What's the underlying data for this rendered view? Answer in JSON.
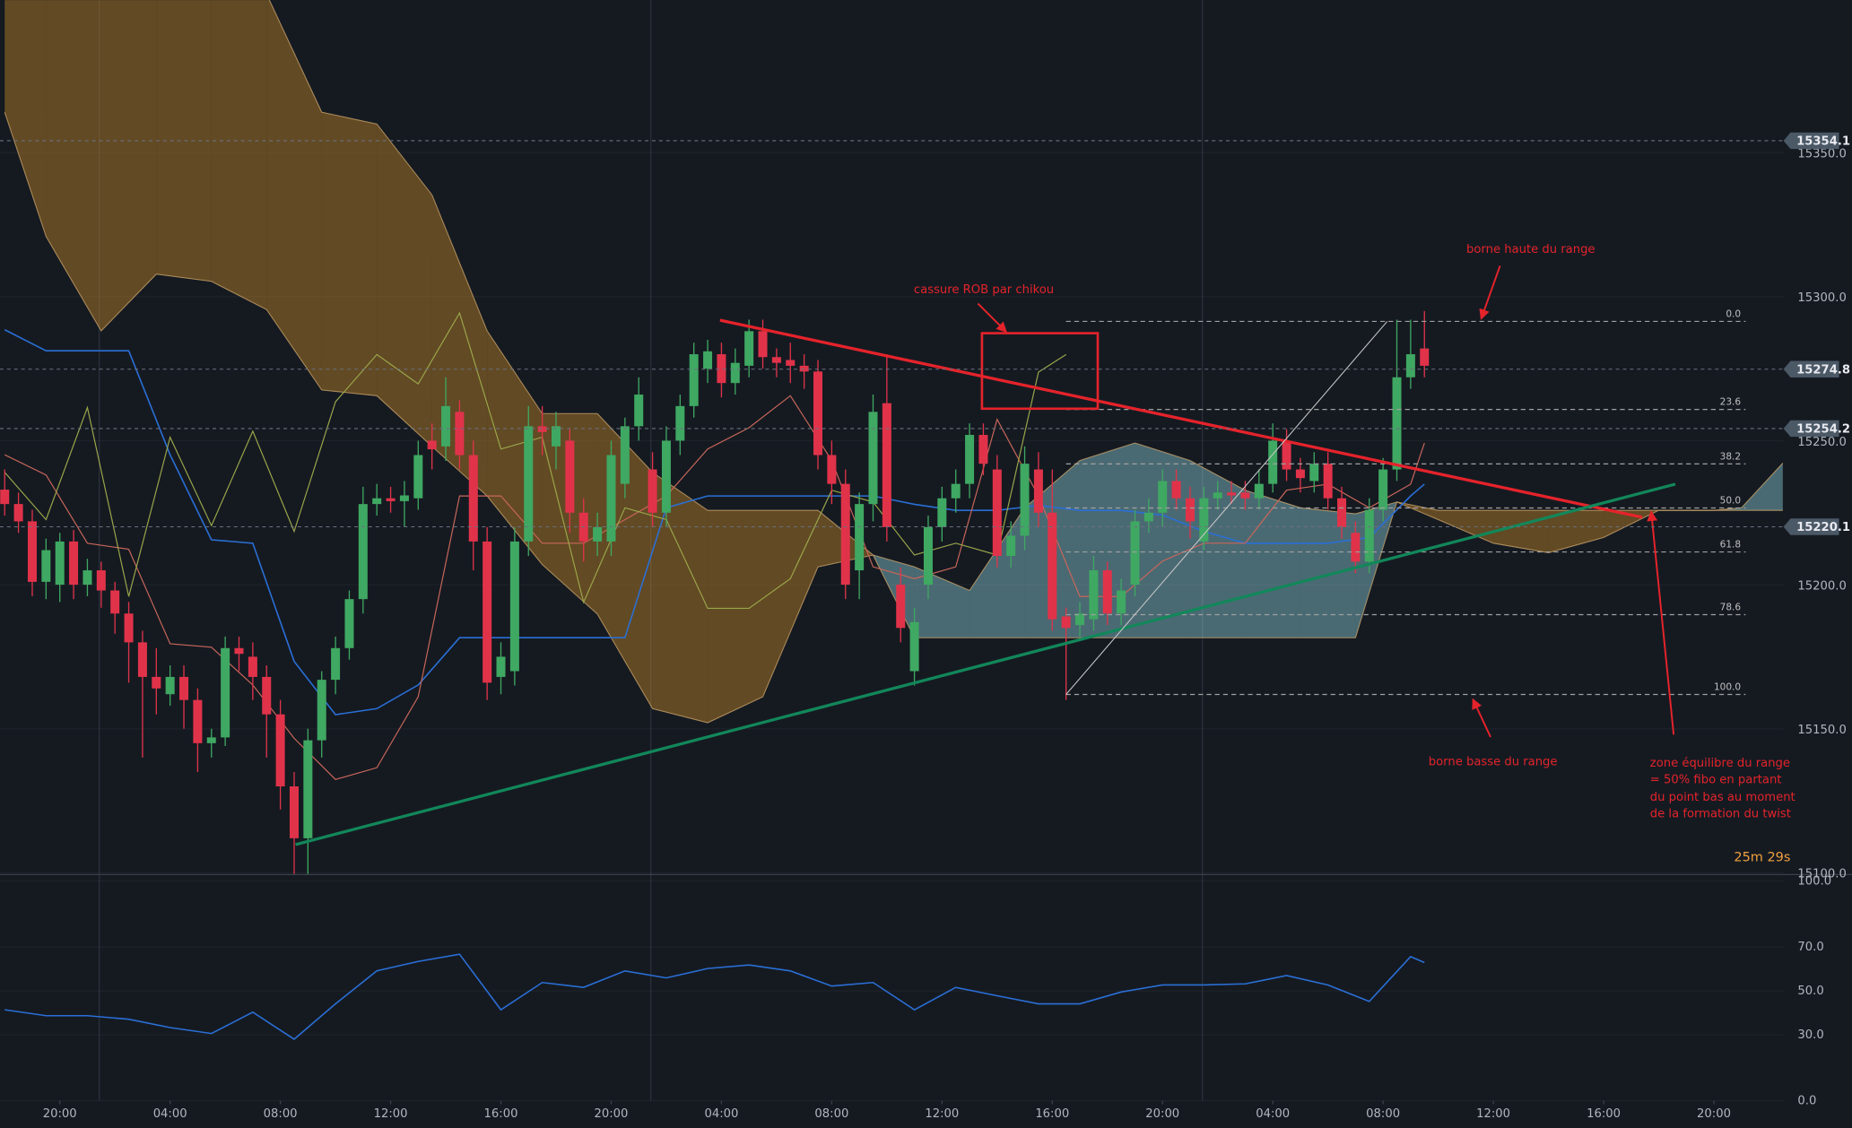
{
  "chart_data": {
    "type": "candlestick",
    "xlim": [
      -0.34,
      129.05
    ],
    "ylim": [
      15099.6,
      15402.9
    ],
    "yticks": [
      {
        "value": 15100,
        "label": "15100.0"
      },
      {
        "value": 15150,
        "label": "15150.0"
      },
      {
        "value": 15200,
        "label": "15200.0"
      },
      {
        "value": 15250,
        "label": "15250.0"
      },
      {
        "value": 15300,
        "label": "15300.0"
      },
      {
        "value": 15350,
        "label": "15350.0"
      }
    ],
    "xticks": [
      {
        "value": 4,
        "label": "20:00"
      },
      {
        "value": 12,
        "label": "04:00"
      },
      {
        "value": 20,
        "label": "08:00"
      },
      {
        "value": 28,
        "label": "12:00"
      },
      {
        "value": 36,
        "label": "16:00"
      },
      {
        "value": 44,
        "label": "20:00"
      },
      {
        "value": 52,
        "label": "04:00"
      },
      {
        "value": 60,
        "label": "08:00"
      },
      {
        "value": 68,
        "label": "12:00"
      },
      {
        "value": 76,
        "label": "16:00"
      },
      {
        "value": 84,
        "label": "20:00"
      },
      {
        "value": 92,
        "label": "04:00"
      },
      {
        "value": 100,
        "label": "08:00"
      },
      {
        "value": 108,
        "label": "12:00"
      },
      {
        "value": 116,
        "label": "16:00"
      },
      {
        "value": 124,
        "label": "20:00"
      }
    ],
    "up_color": "#3fa862",
    "down_color": "#e0334a",
    "ohlc": [
      [
        15233,
        15240,
        15224,
        15228
      ],
      [
        15228,
        15232,
        15218,
        15222
      ],
      [
        15222,
        15226,
        15196,
        15201
      ],
      [
        15201,
        15216,
        15195,
        15212
      ],
      [
        15200,
        15218,
        15194,
        15215
      ],
      [
        15215,
        15219,
        15195,
        15200
      ],
      [
        15200,
        15209,
        15196,
        15205
      ],
      [
        15205,
        15208,
        15192,
        15198
      ],
      [
        15198,
        15201,
        15183,
        15190
      ],
      [
        15190,
        15194,
        15166,
        15180
      ],
      [
        15180,
        15184,
        15140,
        15168
      ],
      [
        15168,
        15178,
        15155,
        15164
      ],
      [
        15162,
        15172,
        15158,
        15168
      ],
      [
        15168,
        15172,
        15150,
        15160
      ],
      [
        15160,
        15164,
        15135,
        15145
      ],
      [
        15145,
        15150,
        15140,
        15147
      ],
      [
        15147,
        15182,
        15144,
        15178
      ],
      [
        15178,
        15182,
        15170,
        15176
      ],
      [
        15175,
        15180,
        15160,
        15168
      ],
      [
        15168,
        15172,
        15140,
        15155
      ],
      [
        15155,
        15160,
        15122,
        15130
      ],
      [
        15130,
        15135,
        15098,
        15112
      ],
      [
        15112,
        15150,
        15098,
        15146
      ],
      [
        15146,
        15170,
        15140,
        15167
      ],
      [
        15167,
        15182,
        15162,
        15178
      ],
      [
        15178,
        15198,
        15174,
        15195
      ],
      [
        15195,
        15234,
        15190,
        15228
      ],
      [
        15228,
        15235,
        15224,
        15230
      ],
      [
        15230,
        15234,
        15225,
        15229
      ],
      [
        15229,
        15236,
        15220,
        15231
      ],
      [
        15230,
        15250,
        15226,
        15245
      ],
      [
        15250,
        15256,
        15240,
        15247
      ],
      [
        15248,
        15272,
        15243,
        15262
      ],
      [
        15260,
        15264,
        15240,
        15245
      ],
      [
        15245,
        15250,
        15205,
        15215
      ],
      [
        15215,
        15220,
        15160,
        15166
      ],
      [
        15168,
        15180,
        15162,
        15175
      ],
      [
        15170,
        15220,
        15165,
        15215
      ],
      [
        15215,
        15262,
        15210,
        15255
      ],
      [
        15255,
        15262,
        15245,
        15253
      ],
      [
        15248,
        15260,
        15240,
        15255
      ],
      [
        15250,
        15254,
        15218,
        15225
      ],
      [
        15225,
        15230,
        15208,
        15215
      ],
      [
        15215,
        15225,
        15210,
        15220
      ],
      [
        15215,
        15250,
        15210,
        15245
      ],
      [
        15235,
        15258,
        15230,
        15255
      ],
      [
        15255,
        15272,
        15250,
        15266
      ],
      [
        15240,
        15246,
        15220,
        15225
      ],
      [
        15225,
        15255,
        15220,
        15250
      ],
      [
        15250,
        15266,
        15245,
        15262
      ],
      [
        15262,
        15284,
        15258,
        15280
      ],
      [
        15275,
        15285,
        15270,
        15281
      ],
      [
        15280,
        15284,
        15265,
        15270
      ],
      [
        15270,
        15282,
        15266,
        15277
      ],
      [
        15276,
        15292,
        15272,
        15288
      ],
      [
        15288,
        15292,
        15275,
        15279
      ],
      [
        15279,
        15282,
        15272,
        15277
      ],
      [
        15278,
        15284,
        15270,
        15276
      ],
      [
        15276,
        15280,
        15268,
        15274
      ],
      [
        15274,
        15278,
        15240,
        15245
      ],
      [
        15245,
        15250,
        15228,
        15235
      ],
      [
        15235,
        15240,
        15195,
        15200
      ],
      [
        15205,
        15232,
        15195,
        15228
      ],
      [
        15228,
        15266,
        15222,
        15260
      ],
      [
        15263,
        15280,
        15215,
        15220
      ],
      [
        15200,
        15206,
        15180,
        15185
      ],
      [
        15170,
        15192,
        15165,
        15187
      ],
      [
        15200,
        15224,
        15195,
        15220
      ],
      [
        15220,
        15234,
        15215,
        15230
      ],
      [
        15230,
        15240,
        15225,
        15235
      ],
      [
        15235,
        15256,
        15230,
        15252
      ],
      [
        15252,
        15256,
        15238,
        15242
      ],
      [
        15240,
        15245,
        15206,
        15210
      ],
      [
        15210,
        15222,
        15206,
        15217
      ],
      [
        15217,
        15248,
        15212,
        15242
      ],
      [
        15240,
        15246,
        15220,
        15225
      ],
      [
        15225,
        15240,
        15184,
        15188
      ],
      [
        15189,
        15192,
        15160,
        15185
      ],
      [
        15186,
        15194,
        15182,
        15190
      ],
      [
        15188,
        15210,
        15184,
        15205
      ],
      [
        15205,
        15208,
        15186,
        15190
      ],
      [
        15190,
        15202,
        15186,
        15198
      ],
      [
        15200,
        15226,
        15196,
        15222
      ],
      [
        15222,
        15230,
        15218,
        15225
      ],
      [
        15225,
        15240,
        15220,
        15236
      ],
      [
        15236,
        15240,
        15226,
        15230
      ],
      [
        15230,
        15234,
        15216,
        15222
      ],
      [
        15215,
        15234,
        15212,
        15230
      ],
      [
        15230,
        15236,
        15226,
        15232
      ],
      [
        15232,
        15236,
        15228,
        15231
      ],
      [
        15232,
        15236,
        15226,
        15230
      ],
      [
        15230,
        15240,
        15226,
        15235
      ],
      [
        15235,
        15256,
        15232,
        15250
      ],
      [
        15250,
        15254,
        15236,
        15240
      ],
      [
        15240,
        15244,
        15232,
        15237
      ],
      [
        15236,
        15246,
        15232,
        15242
      ],
      [
        15242,
        15246,
        15226,
        15230
      ],
      [
        15230,
        15234,
        15216,
        15220
      ],
      [
        15218,
        15222,
        15204,
        15208
      ],
      [
        15208,
        15230,
        15204,
        15226
      ],
      [
        15226,
        15244,
        15222,
        15240
      ],
      [
        15240,
        15292,
        15236,
        15272
      ],
      [
        15272,
        15292,
        15268,
        15280
      ],
      [
        15282,
        15295,
        15272,
        15276
      ]
    ],
    "cloud": {
      "up_fill": "rgba(140,205,215,0.45)",
      "down_fill": "rgba(205,140,40,0.42)",
      "edge_color": "#c9a36a",
      "x": [
        0,
        3,
        7,
        11,
        15,
        19,
        23,
        27,
        31,
        35,
        39,
        43,
        47,
        51,
        55,
        59,
        63,
        66,
        70,
        74,
        78,
        82,
        86,
        90,
        94,
        98,
        101,
        104,
        108,
        112,
        116,
        120,
        124,
        126,
        129
      ],
      "span_a": [
        15364.0,
        15320.9,
        15288.1,
        15307.8,
        15305.3,
        15295.5,
        15267.6,
        15265.6,
        15248.0,
        15230.8,
        15207.0,
        15189.8,
        15157.0,
        15152.1,
        15161.1,
        15206.2,
        15210.3,
        15206.2,
        15198.0,
        15226.7,
        15243.1,
        15249.2,
        15243.1,
        15232.8,
        15226.7,
        15224.6,
        15228.7,
        15222.6,
        15214.4,
        15211.1,
        15216.4,
        15225.8,
        15225.8,
        15226.7,
        15242.2
      ],
      "span_b": [
        15405,
        15405,
        15405,
        15405,
        15405,
        15405,
        15364.0,
        15359.9,
        15335.3,
        15288.1,
        15259.4,
        15259.4,
        15239.0,
        15225.8,
        15225.8,
        15225.8,
        15210.3,
        15181.6,
        15181.6,
        15181.6,
        15181.6,
        15181.6,
        15181.6,
        15181.6,
        15181.6,
        15181.6,
        15228.7,
        15225.8,
        15225.8,
        15225.8,
        15225.8,
        15225.8,
        15225.8,
        15225.8,
        15225.8
      ]
    },
    "lines": [
      {
        "color": "#2a6fd6",
        "width": 1.2,
        "x": [
          0,
          3,
          6,
          9,
          12,
          15,
          18,
          21,
          24,
          27,
          30,
          33,
          36,
          39,
          42,
          45,
          48,
          51,
          54,
          57,
          60,
          63,
          66,
          69,
          72,
          75,
          78,
          81,
          84,
          87,
          90,
          93,
          96,
          99,
          102,
          103
        ],
        "values": [
          15288.5,
          15281.2,
          15281.2,
          15281.2,
          15245.1,
          15215.6,
          15214.4,
          15173.4,
          15154.9,
          15157.0,
          15165.2,
          15181.6,
          15181.6,
          15181.6,
          15181.6,
          15181.6,
          15226.7,
          15230.8,
          15230.8,
          15230.8,
          15230.8,
          15230.8,
          15227.9,
          15225.8,
          15225.8,
          15227.5,
          15225.8,
          15225.8,
          15224.2,
          15218.5,
          15214.4,
          15214.4,
          15214.4,
          15216.4,
          15230.8,
          15234.9
        ]
      },
      {
        "color": "#c9665a",
        "width": 0.9,
        "x": [
          0,
          3,
          6,
          9,
          12,
          15,
          18,
          21,
          24,
          27,
          30,
          33,
          36,
          39,
          42,
          45,
          48,
          51,
          54,
          57,
          60,
          63,
          66,
          69,
          72,
          75,
          78,
          81,
          84,
          87,
          90,
          93,
          96,
          99,
          102,
          103
        ],
        "values": [
          15245.1,
          15238.1,
          15214.4,
          15212.3,
          15179.5,
          15178.3,
          15165.2,
          15146.7,
          15132.4,
          15136.5,
          15161.1,
          15230.8,
          15230.8,
          15214.4,
          15214.4,
          15222.6,
          15230.8,
          15247.1,
          15254.5,
          15265.6,
          15243.1,
          15206.2,
          15202.1,
          15206.2,
          15257.4,
          15230.8,
          15195.9,
          15195.9,
          15208.2,
          15214.4,
          15214.4,
          15232.8,
          15234.9,
          15226.7,
          15234.9,
          15249.2
        ]
      },
      {
        "color": "#9aa64a",
        "width": 0.9,
        "x": [
          0,
          3,
          6,
          9,
          12,
          15,
          18,
          21,
          24,
          27,
          30,
          33,
          36,
          39,
          42,
          45,
          48,
          51,
          54,
          57,
          60,
          63,
          66,
          69,
          72,
          75,
          77
        ],
        "values": [
          15239.0,
          15222.6,
          15261.5,
          15195.9,
          15251.2,
          15220.5,
          15253.3,
          15218.5,
          15263.5,
          15279.9,
          15269.7,
          15294.3,
          15247.1,
          15251.2,
          15193.9,
          15226.7,
          15222.6,
          15191.8,
          15191.8,
          15202.1,
          15232.8,
          15228.7,
          15210.3,
          15214.4,
          15210.3,
          15273.8,
          15279.9
        ]
      }
    ],
    "price_lines": [
      15354.1,
      15274.8,
      15254.2,
      15220.1
    ],
    "fib": {
      "x": [
        77.0,
        126.3
      ],
      "high": 15291.4,
      "low": 15161.9,
      "color": "#a0a0a0",
      "levels": [
        {
          "value": 0,
          "label": "0.0"
        },
        23.6,
        38.2,
        {
          "value": 50,
          "label": "50.0"
        },
        61.8,
        78.6,
        {
          "value": 100,
          "label": "100.0"
        }
      ]
    },
    "trendlines": [
      {
        "color": "#e5232b",
        "width": 2.5,
        "x": [
          51.9,
          118.8
        ],
        "values": [
          15291.8,
          15223.4
        ]
      },
      {
        "color": "#12875a",
        "width": 2.5,
        "x": [
          21.1,
          121.2
        ],
        "values": [
          15109.8,
          15234.9
        ]
      },
      {
        "color": "#c8c8c8",
        "width": 0.8,
        "x": [
          77.0,
          100.3
        ],
        "values": [
          15161.9,
          15291.4
        ]
      }
    ],
    "rectangle": {
      "color": "#e5232b",
      "x": [
        70.9,
        79.3
      ],
      "values": [
        15261.1,
        15287.3
      ]
    },
    "annotations": [
      "cassure ROB par chikou",
      "borne haute du range",
      "borne basse du range"
    ],
    "note_lines": [
      "zone équilibre du range",
      "= 50% fibo en partant",
      "du point bas au moment",
      "de la formation du twist"
    ],
    "timer": "25m 29s",
    "rsi": {
      "color": "#2a6fd6",
      "ylim": [
        0,
        100
      ],
      "yticks": [
        {
          "value": 0,
          "label": "0.0"
        },
        {
          "value": 30,
          "label": "30.0"
        },
        {
          "value": 50,
          "label": "50.0"
        },
        {
          "value": 70,
          "label": "70.0"
        },
        {
          "value": 100,
          "label": "100.0"
        }
      ],
      "x": [
        0,
        3,
        6,
        9,
        12,
        15,
        18,
        21,
        24,
        27,
        30,
        33,
        36,
        39,
        42,
        45,
        48,
        51,
        54,
        57,
        60,
        63,
        66,
        69,
        72,
        75,
        78,
        81,
        84,
        87,
        90,
        93,
        96,
        99,
        102,
        103
      ],
      "values": [
        41.4,
        38.7,
        38.7,
        37.1,
        33.3,
        30.6,
        40.3,
        28.0,
        44.1,
        59.1,
        63.4,
        66.7,
        41.4,
        53.8,
        51.6,
        59.1,
        55.9,
        60.2,
        61.8,
        59.1,
        52.2,
        53.8,
        41.4,
        51.6,
        47.8,
        44.1,
        44.1,
        49.5,
        52.7,
        52.7,
        53.2,
        57.0,
        52.7,
        45.2,
        65.6,
        62.9
      ]
    }
  }
}
